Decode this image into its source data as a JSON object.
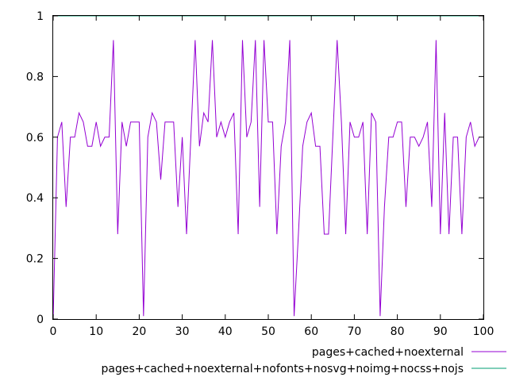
{
  "chart_data": {
    "type": "line",
    "xlim": [
      0,
      100
    ],
    "ylim": [
      0,
      1
    ],
    "x_ticks": [
      0,
      10,
      20,
      30,
      40,
      50,
      60,
      70,
      80,
      90,
      100
    ],
    "y_ticks": [
      0,
      0.2,
      0.4,
      0.6,
      0.8,
      1
    ],
    "x_tick_labels": [
      "0",
      "10",
      "20",
      "30",
      "40",
      "50",
      "60",
      "70",
      "80",
      "90",
      "100"
    ],
    "y_tick_labels": [
      "0",
      "0.2",
      "0.4",
      "0.6",
      "0.8",
      "1"
    ],
    "grid": false,
    "legend_position": "bottom-right, below plot",
    "series": [
      {
        "name": "pages+cached+noexternal",
        "color": "#9400d3",
        "x": [
          0,
          1,
          2,
          3,
          4,
          5,
          6,
          7,
          8,
          9,
          10,
          11,
          12,
          13,
          14,
          15,
          16,
          17,
          18,
          19,
          20,
          21,
          22,
          23,
          24,
          25,
          26,
          27,
          28,
          29,
          30,
          31,
          32,
          33,
          34,
          35,
          36,
          37,
          38,
          39,
          40,
          41,
          42,
          43,
          44,
          45,
          46,
          47,
          48,
          49,
          50,
          51,
          52,
          53,
          54,
          55,
          56,
          57,
          58,
          59,
          60,
          61,
          62,
          63,
          64,
          65,
          66,
          67,
          68,
          69,
          70,
          71,
          72,
          73,
          74,
          75,
          76,
          77,
          78,
          79,
          80,
          81,
          82,
          83,
          84,
          85,
          86,
          87,
          88,
          89,
          90,
          91,
          92,
          93,
          94,
          95,
          96,
          97,
          98,
          99
        ],
        "values": [
          0,
          0.6,
          0.65,
          0.37,
          0.6,
          0.6,
          0.68,
          0.65,
          0.57,
          0.57,
          0.65,
          0.57,
          0.6,
          0.6,
          0.92,
          0.28,
          0.65,
          0.57,
          0.65,
          0.65,
          0.65,
          0.01,
          0.6,
          0.68,
          0.65,
          0.46,
          0.65,
          0.65,
          0.65,
          0.37,
          0.6,
          0.28,
          0.6,
          0.92,
          0.57,
          0.68,
          0.65,
          0.92,
          0.6,
          0.65,
          0.6,
          0.65,
          0.68,
          0.28,
          0.92,
          0.6,
          0.65,
          0.92,
          0.37,
          0.92,
          0.65,
          0.65,
          0.28,
          0.57,
          0.65,
          0.92,
          0.01,
          0.28,
          0.57,
          0.65,
          0.68,
          0.57,
          0.57,
          0.28,
          0.28,
          0.6,
          0.92,
          0.65,
          0.28,
          0.65,
          0.6,
          0.6,
          0.65,
          0.28,
          0.68,
          0.65,
          0.01,
          0.37,
          0.6,
          0.6,
          0.65,
          0.65,
          0.37,
          0.6,
          0.6,
          0.57,
          0.6,
          0.65,
          0.37,
          0.92,
          0.28,
          0.68,
          0.28,
          0.6,
          0.6,
          0.28,
          0.6,
          0.65,
          0.57,
          0.6
        ]
      },
      {
        "name": "pages+cached+noexternal+nofonts+nosvg+noimg+nocss+nojs",
        "color": "#009e73",
        "x": [
          0,
          100
        ],
        "values": [
          1,
          1
        ]
      }
    ]
  }
}
